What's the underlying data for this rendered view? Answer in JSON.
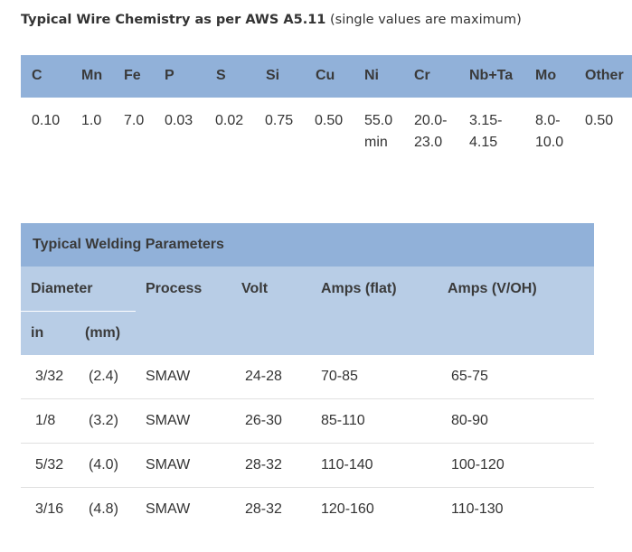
{
  "chemistry": {
    "title_bold": "Typical Wire Chemistry as per AWS A5.11",
    "title_note": " (single values are maximum)",
    "headers": [
      "C",
      "Mn",
      "Fe",
      "P",
      "S",
      "Si",
      "Cu",
      "Ni",
      "Cr",
      "Nb+Ta",
      "Mo",
      "Other"
    ],
    "values_line1": [
      "0.10",
      "1.0",
      "7.0",
      "0.03",
      "0.02",
      "0.75",
      "0.50",
      "55.0",
      "20.0-",
      "3.15-",
      "8.0-",
      "0.50"
    ],
    "values_line2": [
      "",
      "",
      "",
      "",
      "",
      "",
      "",
      "min",
      "23.0",
      "4.15",
      "10.0",
      ""
    ]
  },
  "welding": {
    "title": "Typical Welding Parameters",
    "headers": {
      "diameter": "Diameter",
      "process": "Process",
      "volt": "Volt",
      "amps_flat": "Amps (flat)",
      "amps_voh": "Amps (V/OH)",
      "in": "in",
      "mm": "(mm)"
    },
    "rows": [
      {
        "in": "3/32",
        "mm": "(2.4)",
        "process": "SMAW",
        "volt": "24-28",
        "amps_flat": "70-85",
        "amps_voh": "65-75"
      },
      {
        "in": "1/8",
        "mm": "(3.2)",
        "process": "SMAW",
        "volt": "26-30",
        "amps_flat": "85-110",
        "amps_voh": "80-90"
      },
      {
        "in": "5/32",
        "mm": "(4.0)",
        "process": "SMAW",
        "volt": "28-32",
        "amps_flat": "110-140",
        "amps_voh": "100-120"
      },
      {
        "in": "3/16",
        "mm": "(4.8)",
        "process": "SMAW",
        "volt": "28-32",
        "amps_flat": "120-160",
        "amps_voh": "110-130"
      }
    ]
  }
}
